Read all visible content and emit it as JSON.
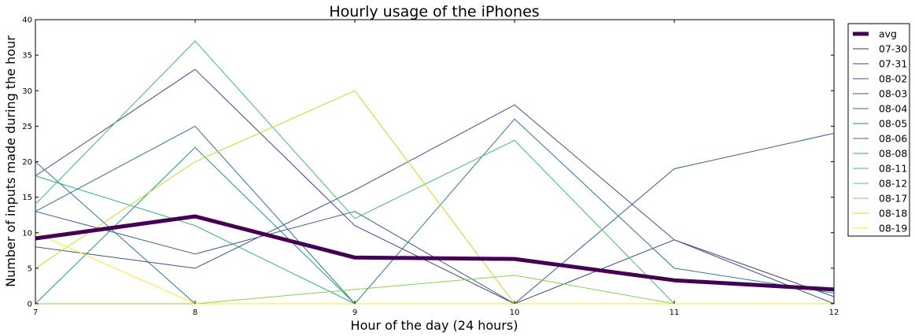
{
  "chart_data": {
    "type": "line",
    "title": "Hourly usage of the iPhones",
    "xlabel": "Hour of the day (24 hours)",
    "ylabel": "Number of inputs made during the hour",
    "x": [
      7,
      8,
      9,
      10,
      11,
      12
    ],
    "xlim": [
      7,
      12
    ],
    "ylim": [
      0,
      40
    ],
    "xticks": [
      "7",
      "8",
      "9",
      "10",
      "11",
      "12"
    ],
    "yticks": [
      "0",
      "5",
      "10",
      "15",
      "20",
      "25",
      "30",
      "35",
      "40"
    ],
    "grid": false,
    "legend_position": "outside-right",
    "series": [
      {
        "name": "avg",
        "color": "#440154",
        "width": 5,
        "values": [
          9.2,
          12.3,
          6.5,
          6.3,
          3.3,
          2.0
        ]
      },
      {
        "name": "07-30",
        "color": "#482475",
        "width": 1,
        "values": [
          0,
          0,
          0,
          0,
          0,
          0
        ]
      },
      {
        "name": "07-31",
        "color": "#414487",
        "width": 1,
        "values": [
          18,
          33,
          11,
          0,
          9,
          1
        ]
      },
      {
        "name": "08-02",
        "color": "#3b528b",
        "width": 1,
        "values": [
          8,
          5,
          16,
          28,
          9,
          0
        ]
      },
      {
        "name": "08-03",
        "color": "#355f8d",
        "width": 1,
        "values": [
          13,
          7,
          13,
          0,
          19,
          24
        ]
      },
      {
        "name": "08-04",
        "color": "#2c728e",
        "width": 1,
        "values": [
          13,
          25,
          0,
          0,
          0,
          0
        ]
      },
      {
        "name": "08-05",
        "color": "#21918c",
        "width": 1,
        "values": [
          0,
          22,
          0,
          0,
          0,
          0
        ]
      },
      {
        "name": "08-06",
        "color": "#287c8e",
        "width": 1,
        "values": [
          20,
          0,
          0,
          26,
          5,
          1.5
        ]
      },
      {
        "name": "08-08",
        "color": "#28ae80",
        "width": 1,
        "values": [
          18,
          11,
          0,
          0,
          0,
          0
        ]
      },
      {
        "name": "08-11",
        "color": "#3fbc73",
        "width": 1,
        "values": [
          14,
          37,
          12,
          23,
          0,
          0
        ]
      },
      {
        "name": "08-12",
        "color": "#5ec962",
        "width": 1,
        "values": [
          0,
          0,
          0,
          0,
          0,
          0
        ]
      },
      {
        "name": "08-17",
        "color": "#84d44b",
        "width": 1,
        "values": [
          0,
          0,
          2,
          4,
          0,
          0
        ]
      },
      {
        "name": "08-18",
        "color": "#c2df23",
        "width": 1,
        "values": [
          5,
          20,
          30,
          0,
          0,
          0
        ]
      },
      {
        "name": "08-19",
        "color": "#fde725",
        "width": 1,
        "values": [
          10,
          0,
          0,
          0,
          0,
          0
        ]
      }
    ]
  }
}
